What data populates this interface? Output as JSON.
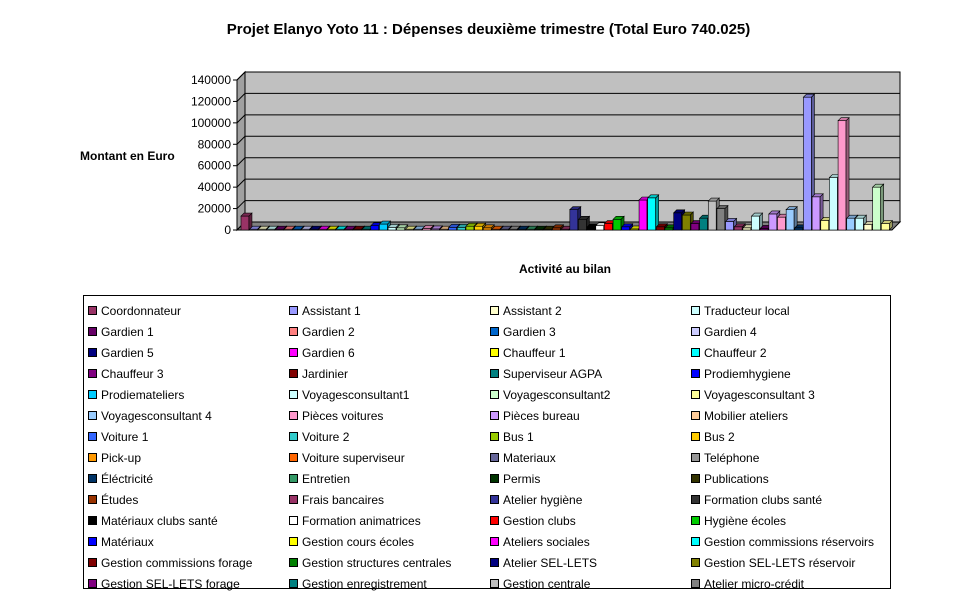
{
  "chart_data": {
    "type": "bar",
    "title": "Projet Elanyo Yoto 11 : Dépenses deuxième trimestre (Total Euro 740.025)",
    "ylabel": "Montant en Euro",
    "xlabel": "Activité au bilan",
    "ylim": [
      0,
      140000
    ],
    "yticks": [
      "140000",
      "120000",
      "100000",
      "80000",
      "60000",
      "40000",
      "20000",
      "0"
    ],
    "grid": true,
    "legend_position": "bottom",
    "series": [
      {
        "name": "Coordonnateur",
        "color": "#993366",
        "value": 13000
      },
      {
        "name": "Assistant 1",
        "color": "#9999FF",
        "value": 800
      },
      {
        "name": "Assistant 2",
        "color": "#FFFFCC",
        "value": 800
      },
      {
        "name": "Traducteur local",
        "color": "#CCFFFF",
        "value": 800
      },
      {
        "name": "Gardien 1",
        "color": "#660066",
        "value": 800
      },
      {
        "name": "Gardien 2",
        "color": "#FF8080",
        "value": 800
      },
      {
        "name": "Gardien 3",
        "color": "#0066CC",
        "value": 800
      },
      {
        "name": "Gardien 4",
        "color": "#CCCCFF",
        "value": 800
      },
      {
        "name": "Gardien 5",
        "color": "#000080",
        "value": 800
      },
      {
        "name": "Gardien 6",
        "color": "#FF00FF",
        "value": 800
      },
      {
        "name": "Chauffeur 1",
        "color": "#FFFF00",
        "value": 800
      },
      {
        "name": "Chauffeur 2",
        "color": "#00FFFF",
        "value": 800
      },
      {
        "name": "Chauffeur 3",
        "color": "#800080",
        "value": 800
      },
      {
        "name": "Jardinier",
        "color": "#800000",
        "value": 800
      },
      {
        "name": "Superviseur AGPA",
        "color": "#008080",
        "value": 800
      },
      {
        "name": "Prodiemhygiene",
        "color": "#0000FF",
        "value": 4000
      },
      {
        "name": "Prodiemateliers",
        "color": "#00CCFF",
        "value": 5500
      },
      {
        "name": "Voyagesconsultant1",
        "color": "#CCFFFF",
        "value": 2500
      },
      {
        "name": "Voyagesconsultant2",
        "color": "#CCFFCC",
        "value": 2000
      },
      {
        "name": "Voyagesconsultant 3",
        "color": "#FFFF99",
        "value": 800
      },
      {
        "name": "Voyagesconsultant 4",
        "color": "#99CCFF",
        "value": 800
      },
      {
        "name": "Pièces voitures",
        "color": "#FF99CC",
        "value": 1500
      },
      {
        "name": "Pièces bureau",
        "color": "#CC99FF",
        "value": 1000
      },
      {
        "name": "Mobilier ateliers",
        "color": "#FFCC99",
        "value": 800
      },
      {
        "name": "Voiture 1",
        "color": "#3366FF",
        "value": 2500
      },
      {
        "name": "Voiture 2",
        "color": "#33CCCC",
        "value": 2500
      },
      {
        "name": "Bus 1",
        "color": "#99CC00",
        "value": 3500
      },
      {
        "name": "Bus 2",
        "color": "#FFCC00",
        "value": 3500
      },
      {
        "name": "Pick-up",
        "color": "#FF9900",
        "value": 2000
      },
      {
        "name": "Voiture superviseur",
        "color": "#FF6600",
        "value": 800
      },
      {
        "name": "Materiaux",
        "color": "#666699",
        "value": 800
      },
      {
        "name": "Teléphone",
        "color": "#969696",
        "value": 800
      },
      {
        "name": "Éléctricité",
        "color": "#003366",
        "value": 800
      },
      {
        "name": "Entretien",
        "color": "#339966",
        "value": 800
      },
      {
        "name": "Permis",
        "color": "#003300",
        "value": 800
      },
      {
        "name": "Publications",
        "color": "#333300",
        "value": 800
      },
      {
        "name": "Études",
        "color": "#993300",
        "value": 2000
      },
      {
        "name": "Frais bancaires",
        "color": "#993366",
        "value": 800
      },
      {
        "name": "Atelier hygiène",
        "color": "#333399",
        "value": 19000
      },
      {
        "name": "Formation clubs santé",
        "color": "#333333",
        "value": 10000
      },
      {
        "name": "Matériaux clubs santé",
        "color": "#000000",
        "value": 3000
      },
      {
        "name": "Formation animatrices",
        "color": "#FFFFFF",
        "value": 4000
      },
      {
        "name": "Gestion clubs",
        "color": "#FF0000",
        "value": 6000
      },
      {
        "name": "Hygiène écoles",
        "color": "#00CC00",
        "value": 10000
      },
      {
        "name": "Matériaux",
        "color": "#0000FF",
        "value": 3000
      },
      {
        "name": "Gestion cours écoles",
        "color": "#FFFF00",
        "value": 1000
      },
      {
        "name": "Ateliers sociales",
        "color": "#FF00FF",
        "value": 28000
      },
      {
        "name": "Gestion commissions réservoirs",
        "color": "#00FFFF",
        "value": 30000
      },
      {
        "name": "Gestion commissions forage",
        "color": "#800000",
        "value": 3000
      },
      {
        "name": "Gestion structures centrales",
        "color": "#008000",
        "value": 2000
      },
      {
        "name": "Atelier SEL-LETS",
        "color": "#000080",
        "value": 16000
      },
      {
        "name": "Gestion SEL-LETS réservoir",
        "color": "#808000",
        "value": 14000
      },
      {
        "name": "Gestion SEL-LETS forage",
        "color": "#800080",
        "value": 6000
      },
      {
        "name": "Gestion enregistrement",
        "color": "#008080",
        "value": 11000
      },
      {
        "name": "Gestion centrale",
        "color": "#C0C0C0",
        "value": 27000
      },
      {
        "name": "Atelier micro-crédit",
        "color": "#808080",
        "value": 20000
      },
      {
        "name": "",
        "color": "#9999FF",
        "value": 8000
      },
      {
        "name": "",
        "color": "#993366",
        "value": 3000
      },
      {
        "name": "",
        "color": "#FFFFCC",
        "value": 2000
      },
      {
        "name": "",
        "color": "#CCFFFF",
        "value": 13000
      },
      {
        "name": "",
        "color": "#660066",
        "value": 1500
      },
      {
        "name": "",
        "color": "#CC99FF",
        "value": 15000
      },
      {
        "name": "",
        "color": "#FF99CC",
        "value": 12000
      },
      {
        "name": "",
        "color": "#99CCFF",
        "value": 19000
      },
      {
        "name": "",
        "color": "#003366",
        "value": 2000
      },
      {
        "name": "",
        "color": "#9999FF",
        "value": 124000
      },
      {
        "name": "",
        "color": "#CC99FF",
        "value": 31000
      },
      {
        "name": "",
        "color": "#FFFF99",
        "value": 9000
      },
      {
        "name": "",
        "color": "#CCFFFF",
        "value": 49000
      },
      {
        "name": "",
        "color": "#FF99CC",
        "value": 102000
      },
      {
        "name": "",
        "color": "#99CCFF",
        "value": 11000
      },
      {
        "name": "",
        "color": "#CCFFFF",
        "value": 11000
      },
      {
        "name": "",
        "color": "#FFFFCC",
        "value": 5000
      },
      {
        "name": "",
        "color": "#CCFFCC",
        "value": 40000
      },
      {
        "name": "",
        "color": "#FFFF99",
        "value": 6000
      }
    ]
  }
}
